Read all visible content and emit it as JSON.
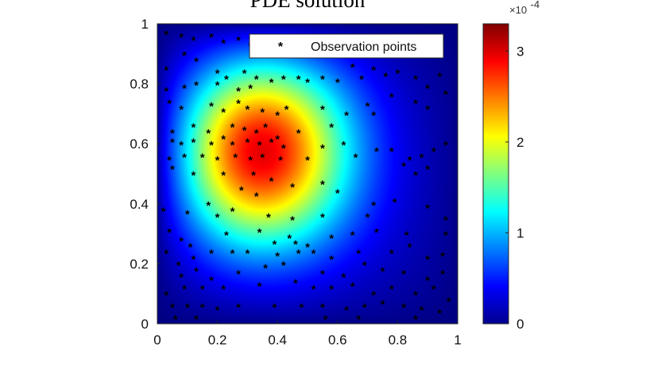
{
  "chart_data": {
    "type": "heatmap",
    "title": "PDE solution",
    "xlabel": "",
    "ylabel": "",
    "xlim": [
      0,
      1
    ],
    "ylim": [
      0,
      1
    ],
    "x_ticks": [
      "0",
      "0.2",
      "0.4",
      "0.6",
      "0.8",
      "1"
    ],
    "y_ticks": [
      "0",
      "0.2",
      "0.4",
      "0.6",
      "0.8",
      "1"
    ],
    "colorbar": {
      "range": [
        0,
        3.3
      ],
      "ticks": [
        "0",
        "1",
        "2",
        "3"
      ],
      "exponent_label": "×10",
      "exponent_power": "-4",
      "colormap": "jet"
    },
    "field_peak": {
      "x": 0.3,
      "y": 0.6,
      "value": 3.3
    },
    "legend": {
      "label": "Observation points",
      "position": "top-right"
    },
    "series": [
      {
        "name": "Observation points",
        "marker": "*",
        "points": [
          [
            0.03,
            0.97
          ],
          [
            0.08,
            0.96
          ],
          [
            0.12,
            0.95
          ],
          [
            0.18,
            0.96
          ],
          [
            0.22,
            0.94
          ],
          [
            0.27,
            0.95
          ],
          [
            0.31,
            0.93
          ],
          [
            0.09,
            0.9
          ],
          [
            0.13,
            0.88
          ],
          [
            0.03,
            0.85
          ],
          [
            0.2,
            0.84
          ],
          [
            0.23,
            0.82
          ],
          [
            0.29,
            0.84
          ],
          [
            0.03,
            0.78
          ],
          [
            0.04,
            0.74
          ],
          [
            0.09,
            0.79
          ],
          [
            0.13,
            0.8
          ],
          [
            0.2,
            0.8
          ],
          [
            0.27,
            0.78
          ],
          [
            0.31,
            0.79
          ],
          [
            0.33,
            0.82
          ],
          [
            0.38,
            0.81
          ],
          [
            0.42,
            0.82
          ],
          [
            0.47,
            0.82
          ],
          [
            0.5,
            0.81
          ],
          [
            0.55,
            0.82
          ],
          [
            0.6,
            0.81
          ],
          [
            0.65,
            0.86
          ],
          [
            0.68,
            0.82
          ],
          [
            0.72,
            0.85
          ],
          [
            0.76,
            0.83
          ],
          [
            0.8,
            0.84
          ],
          [
            0.86,
            0.82
          ],
          [
            0.9,
            0.79
          ],
          [
            0.94,
            0.83
          ],
          [
            0.96,
            0.77
          ],
          [
            0.86,
            0.74
          ],
          [
            0.9,
            0.72
          ],
          [
            0.7,
            0.73
          ],
          [
            0.78,
            0.76
          ],
          [
            0.72,
            0.7
          ],
          [
            0.55,
            0.72
          ],
          [
            0.58,
            0.66
          ],
          [
            0.63,
            0.7
          ],
          [
            0.08,
            0.72
          ],
          [
            0.18,
            0.73
          ],
          [
            0.22,
            0.71
          ],
          [
            0.27,
            0.74
          ],
          [
            0.3,
            0.72
          ],
          [
            0.35,
            0.71
          ],
          [
            0.4,
            0.7
          ],
          [
            0.43,
            0.72
          ],
          [
            0.05,
            0.64
          ],
          [
            0.12,
            0.66
          ],
          [
            0.17,
            0.64
          ],
          [
            0.25,
            0.66
          ],
          [
            0.29,
            0.65
          ],
          [
            0.33,
            0.64
          ],
          [
            0.36,
            0.66
          ],
          [
            0.4,
            0.62
          ],
          [
            0.47,
            0.64
          ],
          [
            0.05,
            0.61
          ],
          [
            0.08,
            0.6
          ],
          [
            0.12,
            0.61
          ],
          [
            0.18,
            0.6
          ],
          [
            0.22,
            0.62
          ],
          [
            0.25,
            0.6
          ],
          [
            0.3,
            0.61
          ],
          [
            0.34,
            0.6
          ],
          [
            0.38,
            0.61
          ],
          [
            0.42,
            0.59
          ],
          [
            0.04,
            0.55
          ],
          [
            0.09,
            0.56
          ],
          [
            0.15,
            0.56
          ],
          [
            0.2,
            0.55
          ],
          [
            0.26,
            0.56
          ],
          [
            0.31,
            0.55
          ],
          [
            0.35,
            0.56
          ],
          [
            0.41,
            0.55
          ],
          [
            0.5,
            0.55
          ],
          [
            0.55,
            0.59
          ],
          [
            0.62,
            0.6
          ],
          [
            0.66,
            0.56
          ],
          [
            0.73,
            0.58
          ],
          [
            0.78,
            0.58
          ],
          [
            0.84,
            0.55
          ],
          [
            0.88,
            0.56
          ],
          [
            0.92,
            0.58
          ],
          [
            0.96,
            0.6
          ],
          [
            0.82,
            0.53
          ],
          [
            0.86,
            0.5
          ],
          [
            0.9,
            0.52
          ],
          [
            0.05,
            0.52
          ],
          [
            0.12,
            0.5
          ],
          [
            0.22,
            0.5
          ],
          [
            0.32,
            0.5
          ],
          [
            0.38,
            0.48
          ],
          [
            0.45,
            0.46
          ],
          [
            0.55,
            0.47
          ],
          [
            0.6,
            0.44
          ],
          [
            0.28,
            0.45
          ],
          [
            0.33,
            0.43
          ],
          [
            0.17,
            0.4
          ],
          [
            0.02,
            0.38
          ],
          [
            0.1,
            0.37
          ],
          [
            0.2,
            0.36
          ],
          [
            0.25,
            0.38
          ],
          [
            0.37,
            0.36
          ],
          [
            0.45,
            0.35
          ],
          [
            0.55,
            0.36
          ],
          [
            0.72,
            0.4
          ],
          [
            0.7,
            0.36
          ],
          [
            0.79,
            0.41
          ],
          [
            0.9,
            0.39
          ],
          [
            0.96,
            0.35
          ],
          [
            0.04,
            0.31
          ],
          [
            0.08,
            0.28
          ],
          [
            0.11,
            0.26
          ],
          [
            0.23,
            0.3
          ],
          [
            0.34,
            0.31
          ],
          [
            0.44,
            0.29
          ],
          [
            0.46,
            0.27
          ],
          [
            0.5,
            0.26
          ],
          [
            0.39,
            0.27
          ],
          [
            0.58,
            0.29
          ],
          [
            0.65,
            0.3
          ],
          [
            0.73,
            0.31
          ],
          [
            0.83,
            0.3
          ],
          [
            0.96,
            0.3
          ],
          [
            0.03,
            0.24
          ],
          [
            0.07,
            0.2
          ],
          [
            0.12,
            0.22
          ],
          [
            0.18,
            0.24
          ],
          [
            0.25,
            0.24
          ],
          [
            0.3,
            0.24
          ],
          [
            0.4,
            0.23
          ],
          [
            0.47,
            0.24
          ],
          [
            0.52,
            0.24
          ],
          [
            0.58,
            0.22
          ],
          [
            0.67,
            0.24
          ],
          [
            0.78,
            0.24
          ],
          [
            0.84,
            0.26
          ],
          [
            0.9,
            0.22
          ],
          [
            0.95,
            0.23
          ],
          [
            0.08,
            0.16
          ],
          [
            0.13,
            0.18
          ],
          [
            0.18,
            0.15
          ],
          [
            0.27,
            0.17
          ],
          [
            0.36,
            0.19
          ],
          [
            0.42,
            0.2
          ],
          [
            0.55,
            0.17
          ],
          [
            0.62,
            0.16
          ],
          [
            0.69,
            0.2
          ],
          [
            0.75,
            0.18
          ],
          [
            0.82,
            0.17
          ],
          [
            0.9,
            0.15
          ],
          [
            0.95,
            0.17
          ],
          [
            0.03,
            0.1
          ],
          [
            0.09,
            0.12
          ],
          [
            0.15,
            0.12
          ],
          [
            0.22,
            0.12
          ],
          [
            0.34,
            0.13
          ],
          [
            0.46,
            0.14
          ],
          [
            0.52,
            0.12
          ],
          [
            0.58,
            0.12
          ],
          [
            0.65,
            0.13
          ],
          [
            0.72,
            0.1
          ],
          [
            0.78,
            0.12
          ],
          [
            0.86,
            0.1
          ],
          [
            0.92,
            0.12
          ],
          [
            0.97,
            0.08
          ],
          [
            0.05,
            0.06
          ],
          [
            0.1,
            0.06
          ],
          [
            0.15,
            0.06
          ],
          [
            0.2,
            0.05
          ],
          [
            0.27,
            0.06
          ],
          [
            0.39,
            0.06
          ],
          [
            0.48,
            0.06
          ],
          [
            0.55,
            0.06
          ],
          [
            0.63,
            0.05
          ],
          [
            0.69,
            0.06
          ],
          [
            0.75,
            0.07
          ],
          [
            0.82,
            0.06
          ],
          [
            0.88,
            0.05
          ],
          [
            0.94,
            0.04
          ],
          [
            0.06,
            0.02
          ],
          [
            0.13,
            0.02
          ],
          [
            0.56,
            0.02
          ],
          [
            0.67,
            0.02
          ],
          [
            0.86,
            0.02
          ]
        ]
      }
    ]
  }
}
